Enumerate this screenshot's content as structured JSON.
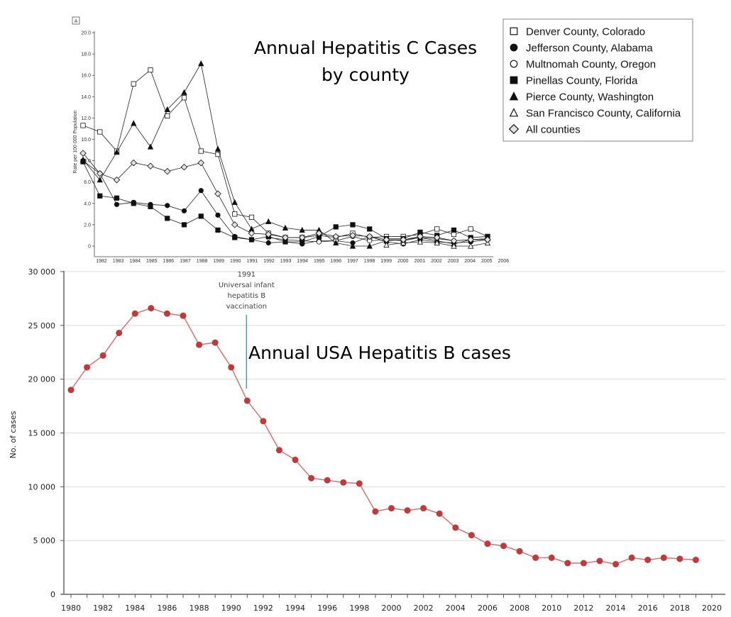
{
  "chart_data": [
    {
      "type": "line",
      "panel_label": "A",
      "title": "Annual Hepatitis C Cases",
      "subtitle": "by county",
      "xlabel": "",
      "ylabel": "Rate per 100 000 Population",
      "ylim": [
        0,
        20
      ],
      "yticks": [
        "0",
        "2.0",
        "4.0",
        "6.0",
        "8.0",
        "10.0",
        "12.0",
        "14.0",
        "16.0",
        "18.0",
        "20.0"
      ],
      "x": [
        1982,
        1983,
        1984,
        1985,
        1986,
        1987,
        1988,
        1989,
        1990,
        1991,
        1992,
        1993,
        1994,
        1995,
        1996,
        1997,
        1998,
        1999,
        2000,
        2001,
        2002,
        2003,
        2004,
        2005,
        2006
      ],
      "grid": false,
      "legend_position": "top-right",
      "series": [
        {
          "name": "Denver County, Colorado",
          "marker": "square-open",
          "values": [
            11.3,
            10.7,
            8.9,
            15.2,
            16.5,
            12.2,
            13.9,
            8.9,
            8.6,
            3.0,
            2.7,
            1.2,
            0.8,
            0.8,
            1.0,
            0.8,
            1.2,
            0.8,
            0.9,
            0.9,
            1.1,
            1.6,
            1.1,
            1.6,
            0.9
          ]
        },
        {
          "name": "Jefferson County, Alabama",
          "marker": "circle-filled",
          "values": [
            8.0,
            6.8,
            3.9,
            4.1,
            3.9,
            3.8,
            3.3,
            5.2,
            2.9,
            0.9,
            0.6,
            0.3,
            0.4,
            0.2,
            0.5,
            0.5,
            0.3,
            0.9,
            0.4,
            0.2,
            0.6,
            0.4,
            0.3,
            0.4,
            0.6
          ]
        },
        {
          "name": "Multnomah County, Oregon",
          "marker": "circle-open",
          "values": [
            null,
            null,
            null,
            null,
            null,
            null,
            null,
            null,
            null,
            null,
            null,
            0.8,
            0.6,
            0.5,
            0.4,
            0.5,
            0.9,
            0.5,
            0.6,
            0.5,
            0.8,
            0.7,
            0.5,
            0.6,
            0.7
          ]
        },
        {
          "name": "Pinellas County, Florida",
          "marker": "square-filled",
          "values": [
            7.9,
            4.7,
            4.5,
            4.0,
            3.7,
            2.6,
            2.0,
            2.8,
            1.5,
            0.8,
            0.6,
            0.9,
            0.4,
            0.4,
            0.9,
            1.8,
            2.0,
            1.6,
            0.7,
            0.7,
            1.3,
            1.0,
            1.5,
            0.8,
            0.9
          ]
        },
        {
          "name": "Pierce County, Washington",
          "marker": "triangle-filled",
          "values": [
            8.1,
            6.2,
            8.8,
            11.5,
            9.3,
            12.8,
            14.4,
            17.1,
            9.1,
            4.1,
            1.6,
            2.3,
            1.7,
            1.5,
            1.5,
            0.3,
            0.0,
            0.0,
            0.5,
            0.6,
            0.8,
            0.5,
            0.2,
            0.6,
            0.7
          ]
        },
        {
          "name": "San Francisco County, California",
          "marker": "triangle-open",
          "values": [
            null,
            null,
            null,
            null,
            null,
            null,
            null,
            null,
            null,
            null,
            null,
            null,
            null,
            null,
            null,
            null,
            null,
            null,
            0.1,
            0.3,
            0.4,
            0.3,
            0.0,
            0.0,
            0.3
          ]
        },
        {
          "name": "All counties",
          "marker": "diamond-open",
          "values": [
            8.7,
            6.8,
            6.2,
            7.8,
            7.5,
            7.0,
            7.4,
            7.8,
            4.9,
            2.0,
            1.2,
            1.1,
            0.8,
            0.8,
            1.2,
            0.9,
            1.0,
            0.9,
            0.6,
            0.6,
            0.9,
            0.8,
            0.5,
            0.6,
            0.6
          ]
        }
      ]
    },
    {
      "type": "line",
      "title": "Annual USA Hepatitis B cases",
      "xlabel": "",
      "ylabel": "No. of cases",
      "ylim": [
        0,
        30000
      ],
      "xlim": [
        1980,
        2020
      ],
      "yticks": [
        "0",
        "5 000",
        "10 000",
        "15 000",
        "20 000",
        "25 000",
        "30 000"
      ],
      "xticks": [
        "1980",
        "1982",
        "1984",
        "1986",
        "1988",
        "1990",
        "1992",
        "1994",
        "1996",
        "1998",
        "2000",
        "2002",
        "2004",
        "2006",
        "2008",
        "2010",
        "2012",
        "2014",
        "2016",
        "2018",
        "2020"
      ],
      "grid": true,
      "series_color": "#c0393b",
      "annotation": {
        "x": 1991,
        "lines": [
          "1991",
          "Universal infant",
          "hepatitis B",
          "vaccination"
        ],
        "color": "#5b8fc7"
      },
      "x": [
        1980,
        1981,
        1982,
        1983,
        1984,
        1985,
        1986,
        1987,
        1988,
        1989,
        1990,
        1991,
        1992,
        1993,
        1994,
        1995,
        1996,
        1997,
        1998,
        1999,
        2000,
        2001,
        2002,
        2003,
        2004,
        2005,
        2006,
        2007,
        2008,
        2009,
        2010,
        2011,
        2012,
        2013,
        2014,
        2015,
        2016,
        2017,
        2018,
        2019
      ],
      "series": [
        {
          "name": "Hepatitis B cases",
          "values": [
            19000,
            21100,
            22200,
            24300,
            26100,
            26600,
            26100,
            25900,
            23200,
            23400,
            21100,
            18000,
            16100,
            13400,
            12500,
            10800,
            10600,
            10400,
            10300,
            7700,
            8000,
            7800,
            8000,
            7500,
            6200,
            5500,
            4700,
            4500,
            4000,
            3400,
            3400,
            2900,
            2900,
            3100,
            2800,
            3400,
            3200,
            3400,
            3300,
            3200
          ]
        }
      ]
    }
  ]
}
